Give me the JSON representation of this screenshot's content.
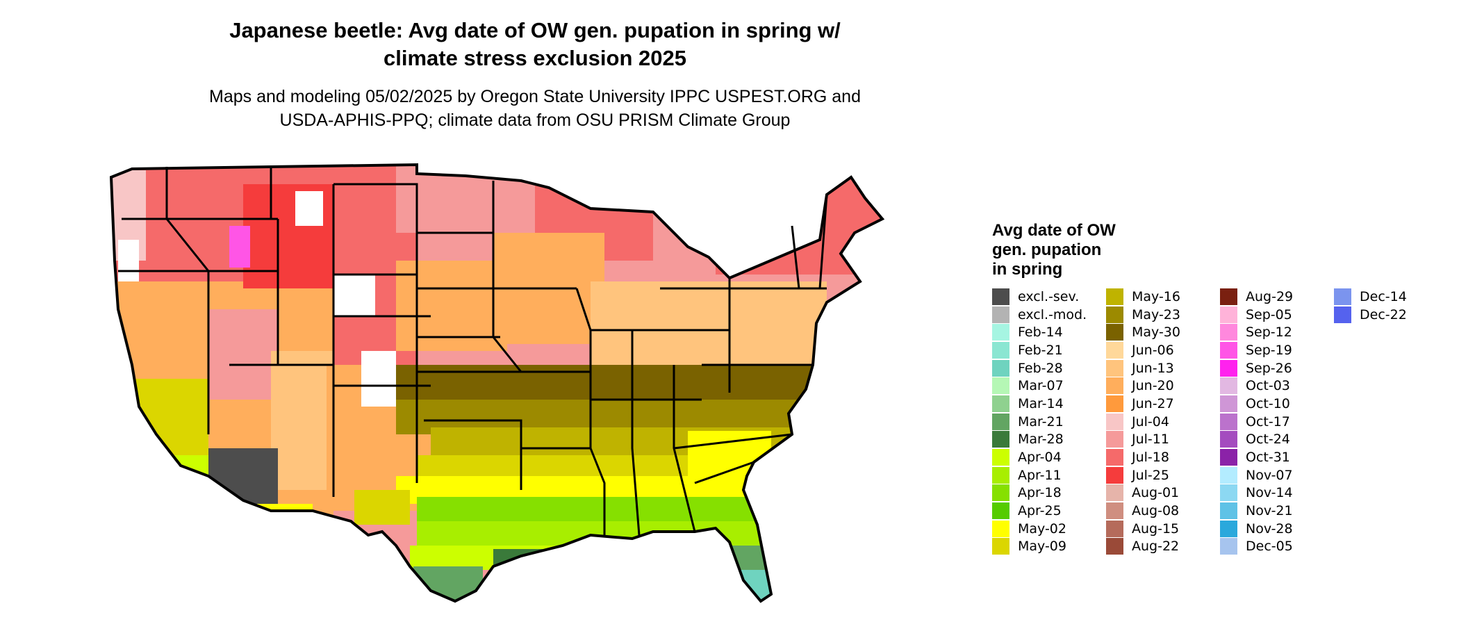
{
  "title_line1": "Japanese beetle: Avg date of OW gen. pupation in spring w/",
  "title_line2": "climate stress exclusion 2025",
  "subtitle_line1": "Maps and modeling 05/02/2025 by Oregon State University IPPC USPEST.ORG and",
  "subtitle_line2": "USDA-APHIS-PPQ; climate data from OSU PRISM Climate Group",
  "legend": {
    "title_line1": "Avg date of OW",
    "title_line2": "gen. pupation",
    "title_line3": "in spring",
    "columns": [
      [
        {
          "label": "excl.-sev.",
          "color": "#4d4d4d"
        },
        {
          "label": "excl.-mod.",
          "color": "#b3b3b3"
        },
        {
          "label": "Feb-14",
          "color": "#a6f5e2"
        },
        {
          "label": "Feb-21",
          "color": "#8be6d2"
        },
        {
          "label": "Feb-28",
          "color": "#6fd3bf"
        },
        {
          "label": "Mar-07",
          "color": "#b5f7b5"
        },
        {
          "label": "Mar-14",
          "color": "#8fd18f"
        },
        {
          "label": "Mar-21",
          "color": "#62a562"
        },
        {
          "label": "Mar-28",
          "color": "#3a7a3a"
        },
        {
          "label": "Apr-04",
          "color": "#ccff00"
        },
        {
          "label": "Apr-11",
          "color": "#a8ee00"
        },
        {
          "label": "Apr-18",
          "color": "#86e000"
        },
        {
          "label": "Apr-25",
          "color": "#55cc00"
        },
        {
          "label": "May-02",
          "color": "#ffff00"
        },
        {
          "label": "May-09",
          "color": "#dbd600"
        }
      ],
      [
        {
          "label": "May-16",
          "color": "#bfb300"
        },
        {
          "label": "May-23",
          "color": "#9c8a00"
        },
        {
          "label": "May-30",
          "color": "#7a6200"
        },
        {
          "label": "Jun-06",
          "color": "#ffd89a"
        },
        {
          "label": "Jun-13",
          "color": "#ffc47d"
        },
        {
          "label": "Jun-20",
          "color": "#ffae5c"
        },
        {
          "label": "Jun-27",
          "color": "#ff9a3c"
        },
        {
          "label": "Jul-04",
          "color": "#f8c6c6"
        },
        {
          "label": "Jul-11",
          "color": "#f59a9a"
        },
        {
          "label": "Jul-18",
          "color": "#f56a6a"
        },
        {
          "label": "Jul-25",
          "color": "#f53c3c"
        },
        {
          "label": "Aug-01",
          "color": "#e6b4aa"
        },
        {
          "label": "Aug-08",
          "color": "#cf8e80"
        },
        {
          "label": "Aug-15",
          "color": "#b56b5b"
        },
        {
          "label": "Aug-22",
          "color": "#9a4a38"
        }
      ],
      [
        {
          "label": "Aug-29",
          "color": "#7a2010"
        },
        {
          "label": "Sep-05",
          "color": "#ffb3d9"
        },
        {
          "label": "Sep-12",
          "color": "#ff88dd"
        },
        {
          "label": "Sep-19",
          "color": "#ff55e6"
        },
        {
          "label": "Sep-26",
          "color": "#ff22ee"
        },
        {
          "label": "Oct-03",
          "color": "#e2b8e2"
        },
        {
          "label": "Oct-10",
          "color": "#cf96d6"
        },
        {
          "label": "Oct-17",
          "color": "#bb72cc"
        },
        {
          "label": "Oct-24",
          "color": "#a44cbf"
        },
        {
          "label": "Oct-31",
          "color": "#8b22a8"
        },
        {
          "label": "Nov-07",
          "color": "#b3ecff"
        },
        {
          "label": "Nov-14",
          "color": "#8cd8f2"
        },
        {
          "label": "Nov-21",
          "color": "#5fc2e6"
        },
        {
          "label": "Nov-28",
          "color": "#2aa8dc"
        },
        {
          "label": "Dec-05",
          "color": "#a6c4ee"
        }
      ],
      [
        {
          "label": "Dec-14",
          "color": "#7b94ee"
        },
        {
          "label": "Dec-22",
          "color": "#5562ee"
        }
      ]
    ]
  }
}
